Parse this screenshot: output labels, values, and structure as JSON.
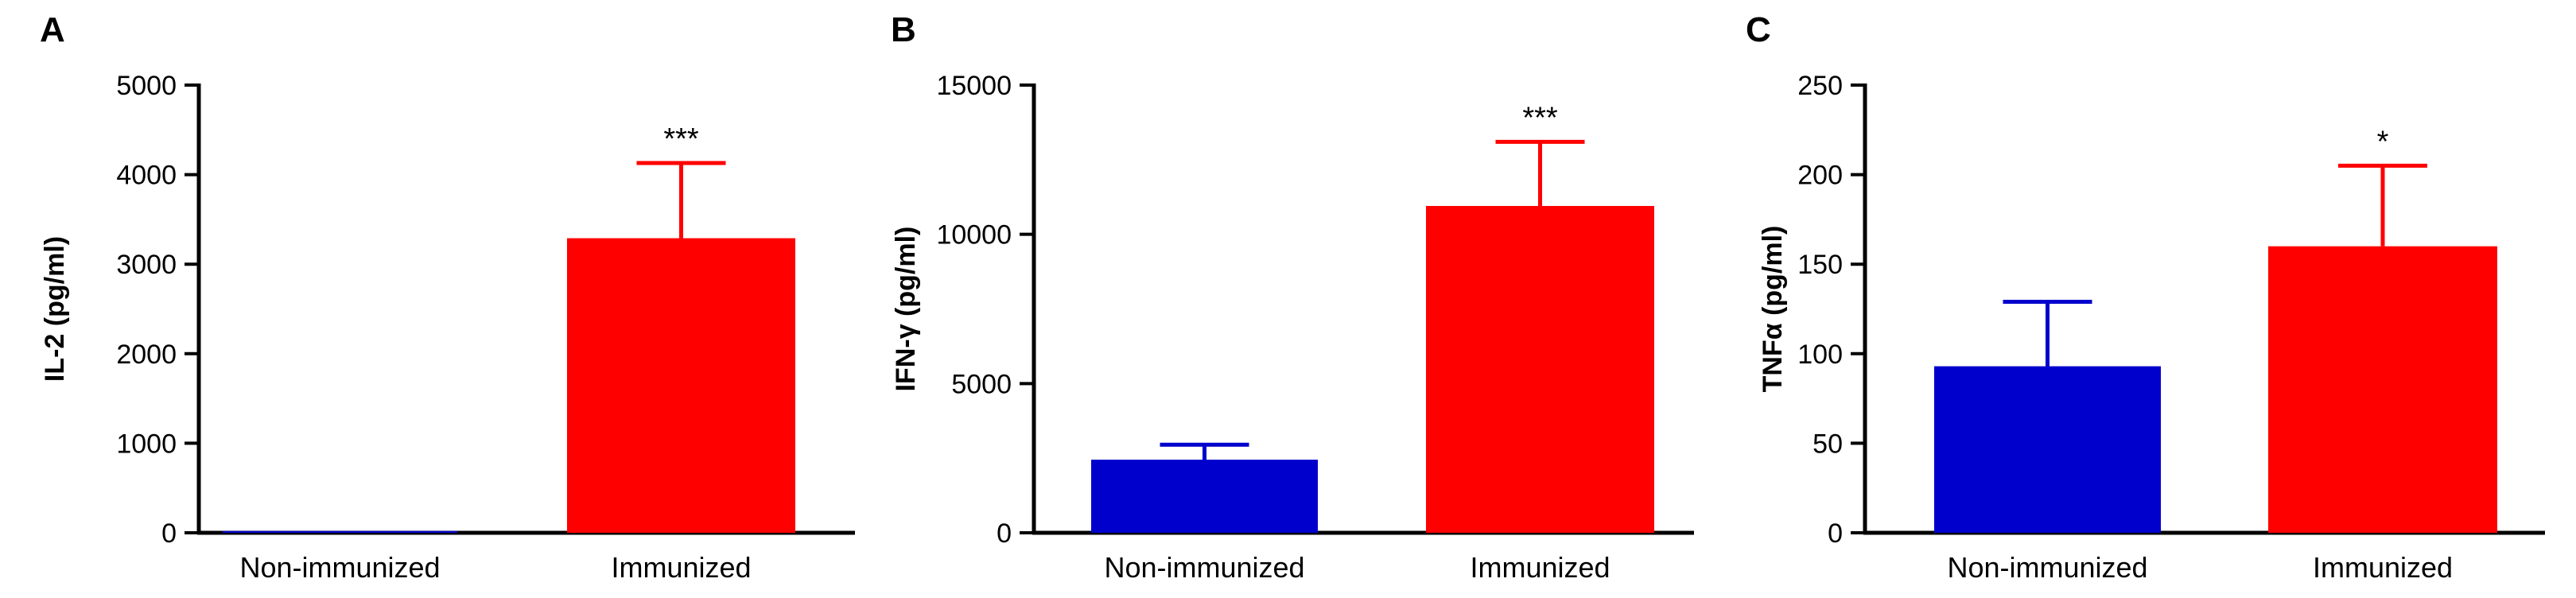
{
  "chart_data": [
    {
      "panel": "A",
      "type": "bar",
      "categories": [
        "Non-immunized",
        "Immunized"
      ],
      "values": [
        20,
        3290
      ],
      "errors": [
        0,
        840
      ],
      "colors": [
        "#0000CC",
        "#FF0000"
      ],
      "significance": [
        "",
        "***"
      ],
      "ylabel": "IL-2 (pg/ml)",
      "ylim": [
        0,
        5000
      ],
      "yticks": [
        0,
        1000,
        2000,
        3000,
        4000,
        5000
      ],
      "ytick_labels": [
        "0",
        "1000",
        "2000",
        "3000",
        "4000",
        "5000"
      ],
      "grid": false
    },
    {
      "panel": "B",
      "type": "bar",
      "categories": [
        "Non-immunized",
        "Immunized"
      ],
      "values": [
        2450,
        10950
      ],
      "errors": [
        500,
        2150
      ],
      "colors": [
        "#0000CC",
        "#FF0000"
      ],
      "significance": [
        "",
        "***"
      ],
      "ylabel": "IFN-γ (pg/ml)",
      "ylim": [
        0,
        15000
      ],
      "yticks": [
        0,
        5000,
        10000,
        15000
      ],
      "ytick_labels": [
        "0",
        "5000",
        "10000",
        "15000"
      ],
      "grid": false
    },
    {
      "panel": "C",
      "type": "bar",
      "categories": [
        "Non-immunized",
        "Immunized"
      ],
      "values": [
        93,
        160
      ],
      "errors": [
        36,
        45
      ],
      "colors": [
        "#0000CC",
        "#FF0000"
      ],
      "significance": [
        "",
        "*"
      ],
      "ylabel": "TNFα (pg/ml)",
      "ylim": [
        0,
        250
      ],
      "yticks": [
        0,
        50,
        100,
        150,
        200,
        250
      ],
      "ytick_labels": [
        "0",
        "50",
        "100",
        "150",
        "200",
        "250"
      ],
      "grid": false
    }
  ]
}
